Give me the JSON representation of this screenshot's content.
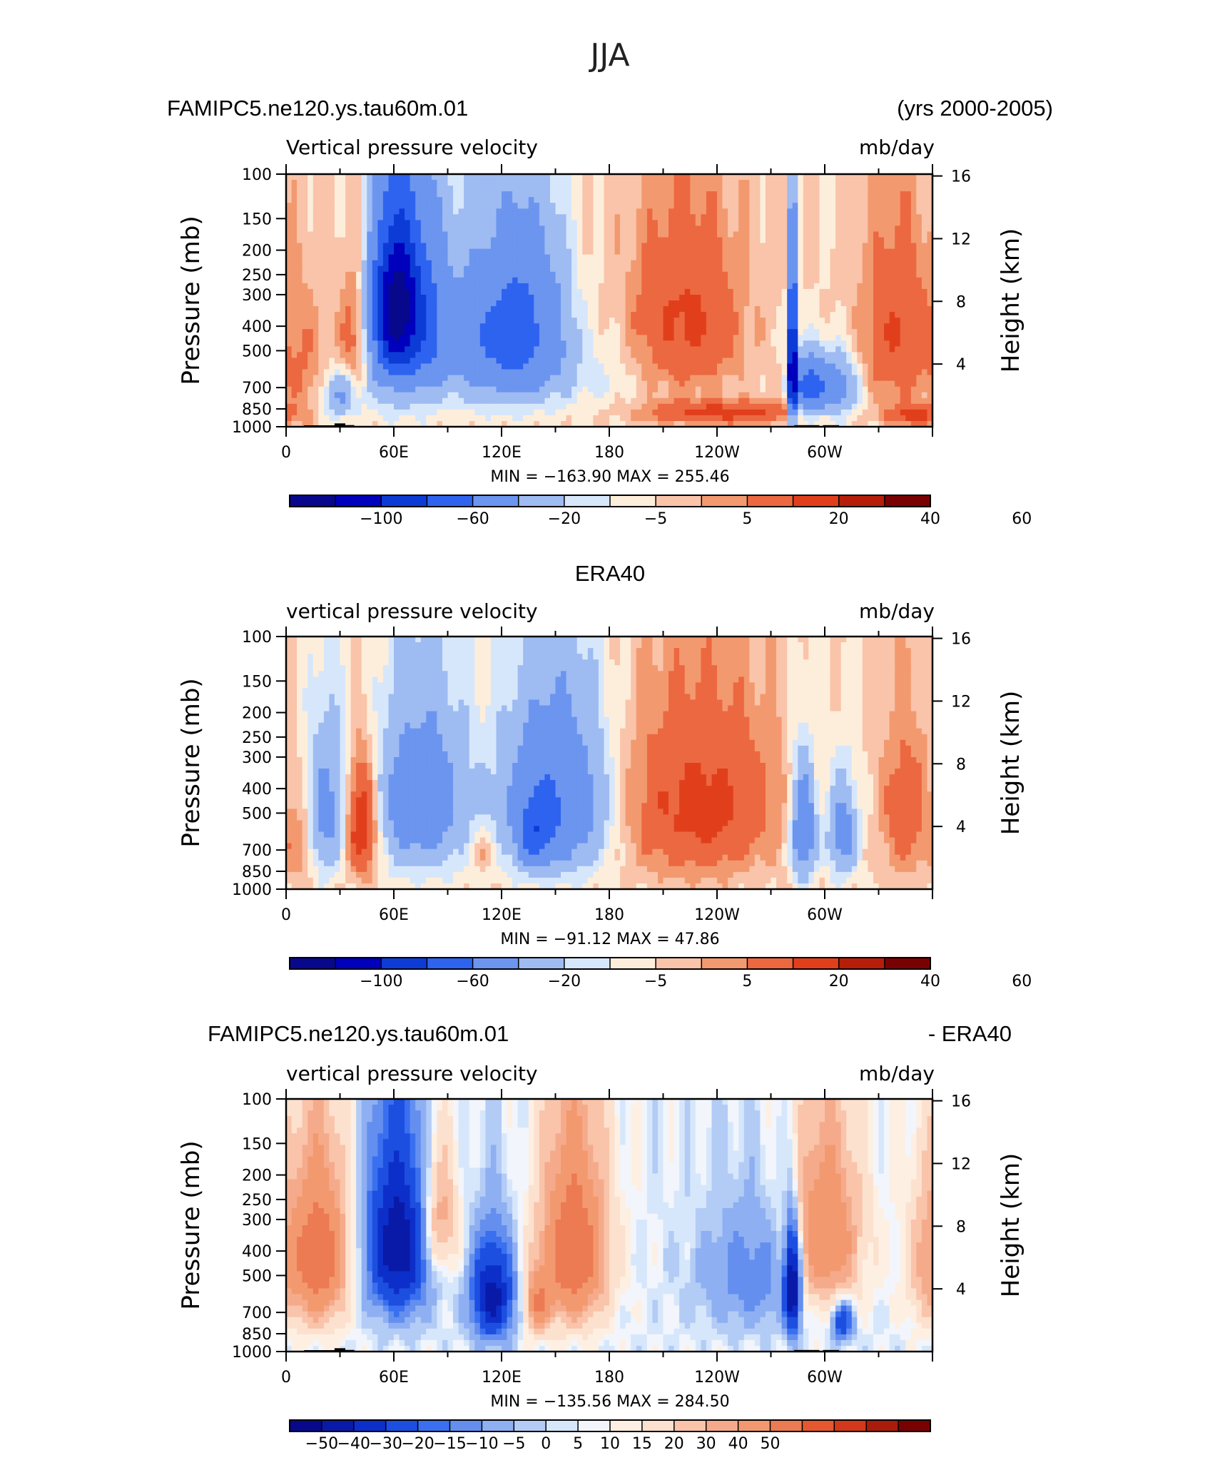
{
  "figure": {
    "title": "JJA",
    "colors": {
      "cb13": [
        "#08088c",
        "#0000bd",
        "#0d3bd6",
        "#2e63f0",
        "#6b95ef",
        "#9ebbf2",
        "#d7e7fb",
        "#fdeedb",
        "#f9c4aa",
        "#f3996f",
        "#ec6840",
        "#e13f1c",
        "#b71e0a",
        "#7a0101"
      ],
      "cb20": [
        "#08088c",
        "#0a1aa8",
        "#0d2fc9",
        "#1c4fe0",
        "#3a70ef",
        "#648fef",
        "#8eb0f2",
        "#b3ccf6",
        "#d7e7fb",
        "#f2f5fc",
        "#fdf0e3",
        "#fde1cf",
        "#f9c4aa",
        "#f5ab8b",
        "#f3996f",
        "#ec7a52",
        "#e5582f",
        "#d1391a",
        "#a91c0a",
        "#7a0101"
      ]
    }
  },
  "panels": [
    {
      "title_left": "FAMIPC5.ne120.ys.tau60m.01",
      "title_right": "(yrs 2000-2005)",
      "title_center": "",
      "field_label": "Vertical pressure velocity",
      "units_label": "mb/day",
      "stats": "MIN = −163.90   MAX = 255.46",
      "chart_data": {
        "type": "heatmap",
        "title": "Vertical pressure velocity",
        "units": "mb/day",
        "ylabel": "Pressure (mb)",
        "ylabel_right": "Height (km)",
        "xlim": [
          0,
          360
        ],
        "ylim": [
          1000,
          100
        ],
        "xticks": [
          {
            "v": 0,
            "t": "0"
          },
          {
            "v": 60,
            "t": "60E"
          },
          {
            "v": 120,
            "t": "120E"
          },
          {
            "v": 180,
            "t": "180"
          },
          {
            "v": 240,
            "t": "120W"
          },
          {
            "v": 300,
            "t": "60W"
          }
        ],
        "yticks": [
          100,
          150,
          200,
          250,
          300,
          400,
          500,
          700,
          850,
          1000
        ],
        "rticks": [
          4,
          8,
          12,
          16
        ],
        "min": -163.9,
        "max": 255.46,
        "colorbar_labels": [
          "−100",
          "−60",
          "−20",
          "−5",
          "5",
          "20",
          "40",
          "60"
        ],
        "colorbar_levels": [
          -100,
          -80,
          -60,
          -40,
          -20,
          -10,
          -5,
          0,
          5,
          10,
          20,
          30,
          40,
          50,
          60
        ],
        "anomalies": [
          {
            "lon": 10,
            "pc": 600,
            "w": 9,
            "h": 400,
            "a": 9
          },
          {
            "lon": 38,
            "pc": 450,
            "w": 6,
            "h": 300,
            "a": 20
          },
          {
            "lon": 30,
            "pc": 750,
            "w": 7,
            "h": 180,
            "a": -22
          },
          {
            "lon": 62,
            "pc": 330,
            "w": 9,
            "h": 260,
            "a": -90
          },
          {
            "lon": 62,
            "pc": 450,
            "w": 14,
            "h": 400,
            "a": -30
          },
          {
            "lon": 82,
            "pc": 400,
            "w": 8,
            "h": 350,
            "a": -28
          },
          {
            "lon": 108,
            "pc": 450,
            "w": 12,
            "h": 350,
            "a": -35
          },
          {
            "lon": 128,
            "pc": 420,
            "w": 9,
            "h": 350,
            "a": -38
          },
          {
            "lon": 145,
            "pc": 420,
            "w": 10,
            "h": 350,
            "a": -28
          },
          {
            "lon": 170,
            "pc": 600,
            "w": 18,
            "h": 300,
            "a": -7
          },
          {
            "lon": 222,
            "pc": 380,
            "w": 22,
            "h": 340,
            "a": 22
          },
          {
            "lon": 245,
            "pc": 880,
            "w": 30,
            "h": 100,
            "a": 25
          },
          {
            "lon": 282,
            "pc": 550,
            "w": 1.5,
            "h": 400,
            "a": -120
          },
          {
            "lon": 290,
            "pc": 700,
            "w": 6,
            "h": 200,
            "a": -45
          },
          {
            "lon": 305,
            "pc": 700,
            "w": 9,
            "h": 220,
            "a": -32
          },
          {
            "lon": 340,
            "pc": 430,
            "w": 14,
            "h": 380,
            "a": 20
          },
          {
            "lon": 350,
            "pc": 900,
            "w": 10,
            "h": 90,
            "a": 25
          }
        ]
      }
    },
    {
      "title_left": "",
      "title_right": "",
      "title_center": "ERA40",
      "field_label": "vertical pressure velocity",
      "units_label": "mb/day",
      "stats": "MIN = −91.12   MAX =  47.86",
      "chart_data": {
        "type": "heatmap",
        "title": "vertical pressure velocity",
        "units": "mb/day",
        "ylabel": "Pressure (mb)",
        "ylabel_right": "Height (km)",
        "xlim": [
          0,
          360
        ],
        "ylim": [
          1000,
          100
        ],
        "xticks": [
          {
            "v": 0,
            "t": "0"
          },
          {
            "v": 60,
            "t": "60E"
          },
          {
            "v": 120,
            "t": "120E"
          },
          {
            "v": 180,
            "t": "180"
          },
          {
            "v": 240,
            "t": "120W"
          },
          {
            "v": 300,
            "t": "60W"
          }
        ],
        "yticks": [
          100,
          150,
          200,
          250,
          300,
          400,
          500,
          700,
          850,
          1000
        ],
        "rticks": [
          4,
          8,
          12,
          16
        ],
        "min": -91.12,
        "max": 47.86,
        "colorbar_labels": [
          "−100",
          "−60",
          "−20",
          "−5",
          "5",
          "20",
          "40",
          "60"
        ],
        "colorbar_levels": [
          -100,
          -80,
          -60,
          -40,
          -20,
          -10,
          -5,
          0,
          5,
          10,
          20,
          30,
          40,
          50,
          60
        ],
        "anomalies": [
          {
            "lon": 8,
            "pc": 650,
            "w": 6,
            "h": 320,
            "a": 10
          },
          {
            "lon": 22,
            "pc": 500,
            "w": 8,
            "h": 380,
            "a": -25
          },
          {
            "lon": 42,
            "pc": 560,
            "w": 6,
            "h": 320,
            "a": 35
          },
          {
            "lon": 75,
            "pc": 450,
            "w": 18,
            "h": 400,
            "a": -32
          },
          {
            "lon": 110,
            "pc": 700,
            "w": 5,
            "h": 150,
            "a": 10
          },
          {
            "lon": 150,
            "pc": 460,
            "w": 20,
            "h": 400,
            "a": -42
          },
          {
            "lon": 138,
            "pc": 620,
            "w": 6,
            "h": 200,
            "a": -30
          },
          {
            "lon": 230,
            "pc": 470,
            "w": 30,
            "h": 400,
            "a": 24
          },
          {
            "lon": 288,
            "pc": 580,
            "w": 5,
            "h": 340,
            "a": -38
          },
          {
            "lon": 310,
            "pc": 600,
            "w": 6,
            "h": 300,
            "a": -28
          },
          {
            "lon": 345,
            "pc": 500,
            "w": 10,
            "h": 400,
            "a": 15
          }
        ]
      }
    },
    {
      "title_left": "FAMIPC5.ne120.ys.tau60m.01",
      "title_right": "- ERA40",
      "title_center": "",
      "field_label": "vertical pressure velocity",
      "units_label": "mb/day",
      "stats": "MIN = −135.56   MAX = 284.50",
      "chart_data": {
        "type": "heatmap",
        "title": "vertical pressure velocity",
        "units": "mb/day",
        "ylabel": "Pressure (mb)",
        "ylabel_right": "Height (km)",
        "xlim": [
          0,
          360
        ],
        "ylim": [
          1000,
          100
        ],
        "xticks": [
          {
            "v": 0,
            "t": "0"
          },
          {
            "v": 60,
            "t": "60E"
          },
          {
            "v": 120,
            "t": "120E"
          },
          {
            "v": 180,
            "t": "180"
          },
          {
            "v": 240,
            "t": "120W"
          },
          {
            "v": 300,
            "t": "60W"
          }
        ],
        "yticks": [
          100,
          150,
          200,
          250,
          300,
          400,
          500,
          700,
          850,
          1000
        ],
        "rticks": [
          4,
          8,
          12,
          16
        ],
        "min": -135.56,
        "max": 284.5,
        "colorbar_labels": [
          "−50",
          "−40",
          "−30",
          "−20",
          "−15",
          "−10",
          "−5",
          "0",
          "5",
          "10",
          "15",
          "20",
          "30",
          "40",
          "50"
        ],
        "colorbar_levels": [
          -50,
          -40,
          -30,
          -20,
          -15,
          -10,
          -5,
          -2,
          0,
          2,
          5,
          10,
          15,
          20,
          30,
          40,
          50
        ],
        "anomalies": [
          {
            "lon": 18,
            "pc": 420,
            "w": 12,
            "h": 360,
            "a": 38
          },
          {
            "lon": 62,
            "pc": 380,
            "w": 12,
            "h": 330,
            "a": -48
          },
          {
            "lon": 85,
            "pc": 300,
            "w": 7,
            "h": 200,
            "a": 22
          },
          {
            "lon": 115,
            "pc": 600,
            "w": 8,
            "h": 300,
            "a": -45
          },
          {
            "lon": 140,
            "pc": 650,
            "w": 5,
            "h": 200,
            "a": 25
          },
          {
            "lon": 160,
            "pc": 400,
            "w": 13,
            "h": 380,
            "a": 40
          },
          {
            "lon": 260,
            "pc": 500,
            "w": 20,
            "h": 300,
            "a": -14
          },
          {
            "lon": 282,
            "pc": 550,
            "w": 3,
            "h": 300,
            "a": -55
          },
          {
            "lon": 300,
            "pc": 350,
            "w": 14,
            "h": 330,
            "a": 30
          },
          {
            "lon": 310,
            "pc": 760,
            "w": 4,
            "h": 150,
            "a": -30
          },
          {
            "lon": 355,
            "pc": 450,
            "w": 8,
            "h": 350,
            "a": 12
          }
        ]
      }
    }
  ]
}
